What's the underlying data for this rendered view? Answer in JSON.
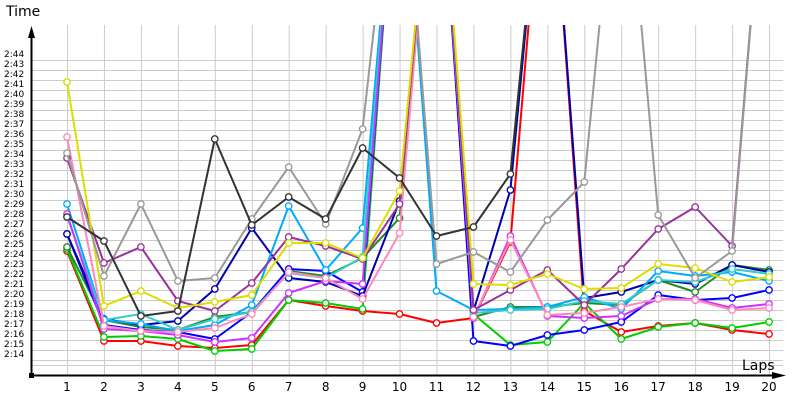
{
  "chart_data": {
    "type": "line",
    "title": "",
    "xlabel": "Laps",
    "ylabel": "Time",
    "x": [
      1,
      2,
      3,
      4,
      5,
      6,
      7,
      8,
      9,
      10,
      11,
      12,
      13,
      14,
      15,
      16,
      17,
      18,
      19,
      20
    ],
    "y_ticks": [
      "2:14",
      "2:15",
      "2:16",
      "2:17",
      "2:18",
      "2:19",
      "2:20",
      "2:21",
      "2:22",
      "2:23",
      "2:24",
      "2:25",
      "2:26",
      "2:27",
      "2:28",
      "2:29",
      "2:30",
      "2:31",
      "2:32",
      "2:33",
      "2:34",
      "2:35",
      "2:36",
      "2:37",
      "2:38",
      "2:39",
      "2:40",
      "2:41",
      "2:42",
      "2:43",
      "2:44"
    ],
    "ylim_seconds": [
      134,
      164
    ],
    "grid": true,
    "legend": "none",
    "markers": "hollow circles",
    "note": "values in seconds past 2:00; null = off-chart (above 2:44)",
    "series": [
      {
        "name": "red",
        "color": "#ff0000",
        "values": [
          144.9,
          135.9,
          135.9,
          135.4,
          135.2,
          135.5,
          140.0,
          139.4,
          138.9,
          138.6,
          137.7,
          138.2,
          145.8,
          null,
          138.9,
          136.8,
          137.4,
          137.7,
          137.0,
          136.6
        ]
      },
      {
        "name": "green",
        "color": "#00cc00",
        "values": [
          145.1,
          136.3,
          136.4,
          136.1,
          134.9,
          135.1,
          140.0,
          139.7,
          139.1,
          null,
          null,
          138.6,
          135.5,
          135.8,
          139.7,
          136.1,
          137.3,
          137.7,
          137.2,
          137.8
        ]
      },
      {
        "name": "dark-green",
        "color": "#228b22",
        "values": [
          145.3,
          138.0,
          137.3,
          137.0,
          138.3,
          138.8,
          142.9,
          142.4,
          144.2,
          148.2,
          null,
          138.3,
          139.3,
          139.3,
          139.7,
          139.5,
          142.0,
          140.8,
          143.5,
          143.0
        ]
      },
      {
        "name": "blue",
        "color": "#0000ff",
        "values": [
          146.6,
          137.5,
          137.0,
          136.8,
          136.1,
          138.8,
          143.1,
          142.9,
          140.8,
          null,
          null,
          135.9,
          135.4,
          136.5,
          137.0,
          137.8,
          140.5,
          140.0,
          140.2,
          141.0
        ]
      },
      {
        "name": "navy",
        "color": "#0000aa",
        "values": [
          146.6,
          138.1,
          137.5,
          137.9,
          141.1,
          147.2,
          142.2,
          141.8,
          140.4,
          149.9,
          null,
          138.9,
          151.0,
          null,
          140.2,
          140.8,
          142.0,
          141.6,
          143.5,
          142.8
        ]
      },
      {
        "name": "light-blue",
        "color": "#00aaff",
        "values": [
          149.6,
          138.0,
          137.6,
          136.9,
          137.5,
          139.5,
          149.4,
          143.0,
          147.2,
          null,
          140.9,
          139.0,
          139.1,
          139.3,
          140.3,
          139.1,
          142.9,
          142.4,
          142.8,
          141.9
        ]
      },
      {
        "name": "cyan",
        "color": "#33cccc",
        "values": [
          148.4,
          138.0,
          138.6,
          137.0,
          138.1,
          138.8,
          142.7,
          142.2,
          144.3,
          null,
          null,
          138.7,
          139.0,
          139.1,
          139.9,
          139.6,
          142.0,
          141.8,
          143.1,
          142.6
        ]
      },
      {
        "name": "magenta",
        "color": "#cc33ff",
        "values": [
          148.6,
          137.1,
          136.9,
          136.5,
          135.8,
          136.2,
          140.7,
          141.9,
          141.6,
          null,
          null,
          138.2,
          146.4,
          138.4,
          138.2,
          138.4,
          140.1,
          140.1,
          139.2,
          139.6
        ]
      },
      {
        "name": "pink",
        "color": "#ff88bb",
        "values": [
          156.3,
          137.4,
          136.9,
          136.8,
          137.2,
          138.6,
          142.8,
          142.2,
          140.1,
          146.7,
          null,
          138.3,
          146.0,
          138.5,
          138.7,
          139.3,
          140.1,
          140.0,
          139.0,
          139.2
        ]
      },
      {
        "name": "purple",
        "color": "#993399",
        "values": [
          154.2,
          143.7,
          145.3,
          139.9,
          138.9,
          141.7,
          146.3,
          145.4,
          144.1,
          149.6,
          null,
          139.0,
          141.0,
          143.0,
          139.5,
          143.1,
          147.1,
          149.3,
          145.4,
          null
        ]
      },
      {
        "name": "yellow",
        "color": "#dddd00",
        "values": [
          161.8,
          139.4,
          140.9,
          139.2,
          139.8,
          140.5,
          145.7,
          145.7,
          144.2,
          150.9,
          null,
          141.6,
          141.5,
          142.6,
          141.1,
          141.2,
          143.6,
          143.2,
          141.8,
          142.3
        ]
      },
      {
        "name": "gray",
        "color": "#999999",
        "values": [
          154.7,
          142.4,
          149.6,
          141.9,
          142.2,
          148.1,
          153.3,
          147.6,
          157.1,
          null,
          143.6,
          144.8,
          142.8,
          148.0,
          151.8,
          null,
          148.5,
          142.2,
          144.9,
          null
        ]
      },
      {
        "name": "black",
        "color": "#333333",
        "values": [
          148.3,
          145.9,
          138.4,
          138.9,
          156.1,
          147.5,
          150.3,
          148.1,
          155.2,
          152.2,
          146.4,
          147.3,
          152.6,
          null,
          null,
          null,
          null,
          null,
          null,
          null
        ]
      }
    ]
  }
}
